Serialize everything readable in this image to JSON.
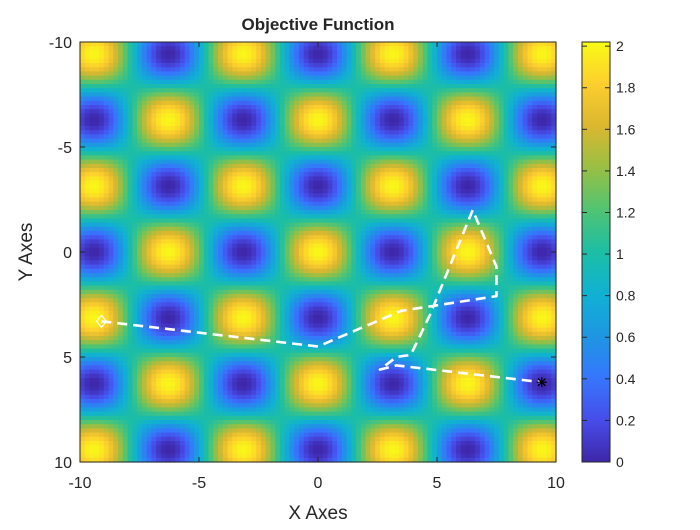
{
  "chart_data": {
    "type": "heatmap",
    "title": "Objective Function",
    "xlabel": "X Axes",
    "ylabel": "Y Axes",
    "xlim": [
      -10,
      10
    ],
    "ylim": [
      -10,
      10
    ],
    "y_direction": "reversed",
    "x_ticks": [
      -10,
      -5,
      0,
      5,
      10
    ],
    "y_ticks": [
      -10,
      -5,
      0,
      5,
      10
    ],
    "function": "1 + cos(x) * cos(y)",
    "colorbar": {
      "colormap": "parula",
      "limits": [
        0,
        2.02
      ],
      "ticks": [
        0,
        0.2,
        0.4,
        0.6,
        0.8,
        1,
        1.2,
        1.4,
        1.6,
        1.8,
        2
      ],
      "tick_labels": [
        "0",
        "0.2",
        "0.4",
        "0.6",
        "0.8",
        "1",
        "1.2",
        "1.4",
        "1.6",
        "1.8",
        "2"
      ],
      "placement": "right"
    },
    "path": {
      "style": "white dashed",
      "points": [
        [
          -9.1,
          3.3
        ],
        [
          0.0,
          4.5
        ],
        [
          3.5,
          2.8
        ],
        [
          7.5,
          2.1
        ],
        [
          7.5,
          0.7
        ],
        [
          6.5,
          -2.0
        ],
        [
          4.7,
          3.0
        ],
        [
          3.9,
          4.9
        ],
        [
          3.3,
          5.0
        ],
        [
          2.6,
          5.6
        ],
        [
          3.3,
          5.4
        ],
        [
          9.4,
          6.2
        ]
      ],
      "start_marker": "diamond",
      "end_marker": "asterisk"
    }
  }
}
